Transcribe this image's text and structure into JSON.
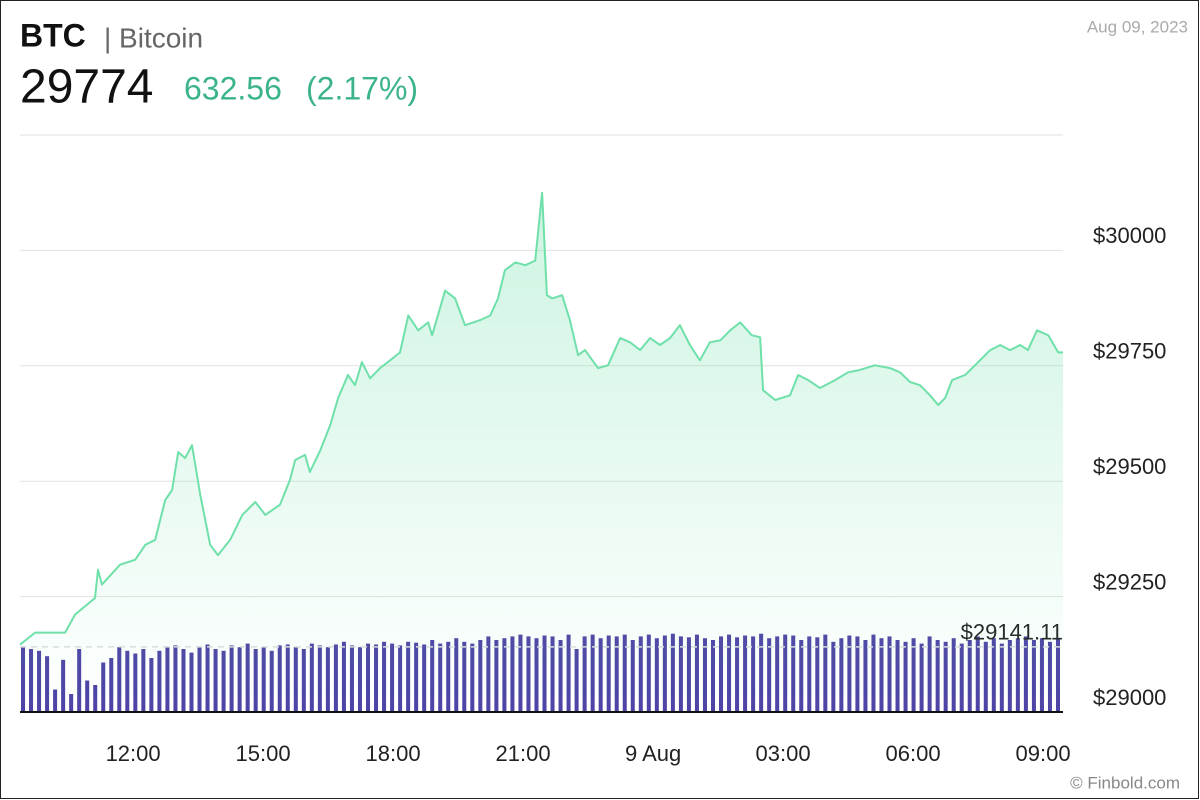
{
  "chart_data": {
    "type": "line",
    "title": "BTC",
    "subtitle": "| Bitcoin",
    "price": 29774,
    "change": 632.56,
    "change_percent_label": "(2.17%)",
    "date": "Aug 09, 2023",
    "source": "© Finbold.com",
    "color": "#6fe0aa",
    "x": [
      9.39,
      9.74,
      10.43,
      10.66,
      11.12,
      11.19,
      11.28,
      11.7,
      12.05,
      12.28,
      12.51,
      12.74,
      12.9,
      13.04,
      13.2,
      13.36,
      13.55,
      13.78,
      13.96,
      14.24,
      14.52,
      14.82,
      15.05,
      15.39,
      15.62,
      15.74,
      15.97,
      16.08,
      16.32,
      16.55,
      16.73,
      16.96,
      17.12,
      17.28,
      17.47,
      17.7,
      17.93,
      18.16,
      18.35,
      18.58,
      18.81,
      18.9,
      19.2,
      19.43,
      19.66,
      20.01,
      20.24,
      20.42,
      20.58,
      20.82,
      21.05,
      21.28,
      21.44,
      21.55,
      21.67,
      21.9,
      22.08,
      22.27,
      22.43,
      22.73,
      22.96,
      23.24,
      23.47,
      23.7,
      23.93,
      24.16,
      24.39,
      24.62,
      24.85,
      25.08,
      25.31,
      25.55,
      25.78,
      26.01,
      26.28,
      26.47,
      26.54,
      26.82,
      27.16,
      27.35,
      27.58,
      27.85,
      28.2,
      28.5,
      28.73,
      29.12,
      29.47,
      29.7,
      29.93,
      30.16,
      30.39,
      30.58,
      30.74,
      30.9,
      31.2,
      31.43,
      31.78,
      32.01,
      32.24,
      32.47,
      32.65,
      32.86,
      33.12,
      33.35,
      33.46
    ],
    "values": [
      29146,
      29172,
      29172,
      29211,
      29247,
      29308,
      29276,
      29319,
      29330,
      29362,
      29373,
      29459,
      29481,
      29563,
      29550,
      29578,
      29470,
      29362,
      29340,
      29373,
      29427,
      29455,
      29427,
      29449,
      29503,
      29546,
      29557,
      29520,
      29567,
      29622,
      29680,
      29730,
      29708,
      29758,
      29723,
      29745,
      29762,
      29779,
      29859,
      29827,
      29844,
      29816,
      29913,
      29896,
      29838,
      29849,
      29859,
      29896,
      29957,
      29974,
      29968,
      29978,
      30125,
      29903,
      29896,
      29903,
      29849,
      29773,
      29784,
      29745,
      29751,
      29810,
      29801,
      29784,
      29810,
      29795,
      29810,
      29838,
      29795,
      29762,
      29801,
      29805,
      29827,
      29844,
      29816,
      29812,
      29697,
      29676,
      29686,
      29730,
      29719,
      29702,
      29719,
      29736,
      29740,
      29751,
      29745,
      29736,
      29715,
      29708,
      29686,
      29665,
      29680,
      29719,
      29730,
      29751,
      29784,
      29795,
      29784,
      29795,
      29784,
      29827,
      29816,
      29779,
      29779
    ],
    "xlim": [
      9.39,
      33.46
    ],
    "xticks": [
      {
        "value": 12,
        "label": "12:00"
      },
      {
        "value": 15,
        "label": "15:00"
      },
      {
        "value": 18,
        "label": "18:00"
      },
      {
        "value": 21,
        "label": "21:00"
      },
      {
        "value": 24,
        "label": "9 Aug"
      },
      {
        "value": 27,
        "label": "03:00"
      },
      {
        "value": 30,
        "label": "06:00"
      },
      {
        "value": 33,
        "label": "09:00"
      }
    ],
    "ylim": [
      29000,
      30250
    ],
    "yticks": [
      {
        "value": 29000,
        "label": "$29000"
      },
      {
        "value": 29250,
        "label": "$29250"
      },
      {
        "value": 29500,
        "label": "$29500"
      },
      {
        "value": 29750,
        "label": "$29750"
      },
      {
        "value": 30000,
        "label": "$30000"
      }
    ],
    "grid": true,
    "reference_line": {
      "value": 29141.11,
      "label": "$29141.11"
    },
    "volume": {
      "color": "#4e44a6",
      "lim": [
        0,
        100
      ],
      "values": [
        72,
        70,
        68,
        62,
        25,
        58,
        20,
        70,
        35,
        30,
        55,
        60,
        72,
        68,
        65,
        70,
        60,
        68,
        72,
        74,
        70,
        66,
        72,
        75,
        70,
        68,
        74,
        72,
        76,
        70,
        72,
        68,
        74,
        75,
        72,
        70,
        76,
        74,
        72,
        75,
        78,
        74,
        72,
        76,
        75,
        78,
        76,
        74,
        78,
        77,
        75,
        80,
        76,
        78,
        82,
        78,
        76,
        80,
        84,
        80,
        82,
        84,
        86,
        84,
        82,
        85,
        84,
        80,
        86,
        70,
        84,
        86,
        82,
        85,
        84,
        86,
        80,
        84,
        86,
        82,
        85,
        87,
        84,
        83,
        86,
        82,
        80,
        84,
        86,
        83,
        85,
        84,
        87,
        82,
        84,
        86,
        85,
        80,
        84,
        83,
        86,
        78,
        82,
        85,
        84,
        80,
        86,
        82,
        84,
        80,
        78,
        82,
        76,
        84,
        80,
        78,
        82,
        76,
        80,
        84,
        78,
        82,
        76,
        80,
        82,
        84,
        80,
        82,
        78,
        82
      ]
    }
  }
}
